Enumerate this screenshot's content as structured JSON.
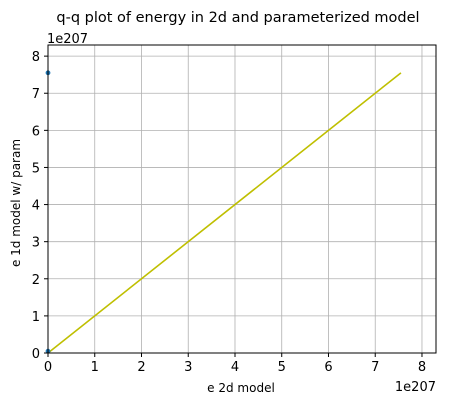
{
  "chart_data": {
    "type": "line",
    "title": "q-q plot of energy in 2d and parameterized model",
    "xlabel": "e 2d model",
    "ylabel": "e 1d model w/ param",
    "x_offset_label": "1e207",
    "y_offset_label": "1e207",
    "xlim": [
      0,
      8.3
    ],
    "ylim": [
      0,
      8.3
    ],
    "xticks": [
      0,
      1,
      2,
      3,
      4,
      5,
      6,
      7,
      8
    ],
    "yticks": [
      0,
      1,
      2,
      3,
      4,
      5,
      6,
      7,
      8
    ],
    "xtick_labels": [
      "0",
      "1",
      "2",
      "3",
      "4",
      "5",
      "6",
      "7",
      "8"
    ],
    "ytick_labels": [
      "0",
      "1",
      "2",
      "3",
      "4",
      "5",
      "6",
      "7",
      "8"
    ],
    "grid": true,
    "series": [
      {
        "kind": "line",
        "color": "#bfbf00",
        "x": [
          0,
          7.55
        ],
        "y": [
          0,
          7.55
        ]
      },
      {
        "kind": "scatter",
        "color": "#1f77b4",
        "x": [
          0,
          0
        ],
        "y": [
          7.55,
          0.05
        ]
      }
    ]
  }
}
